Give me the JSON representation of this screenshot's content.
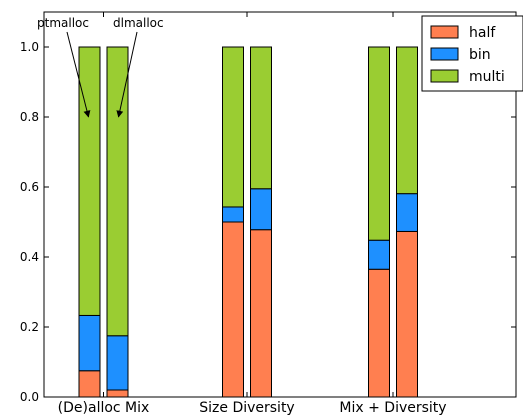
{
  "chart_data": {
    "type": "bar",
    "stacked": true,
    "categories": [
      "(De)alloc Mix",
      "Size Diversity",
      "Mix + Diversity"
    ],
    "bars_per_category": [
      "ptmalloc",
      "dlmalloc"
    ],
    "series": [
      {
        "name": "half",
        "color": "#ff7f50",
        "values": [
          [
            0.075,
            0.02
          ],
          [
            0.5,
            0.478
          ],
          [
            0.365,
            0.473
          ]
        ]
      },
      {
        "name": "bin",
        "color": "#1e90ff",
        "values": [
          [
            0.158,
            0.155
          ],
          [
            0.043,
            0.117
          ],
          [
            0.083,
            0.108
          ]
        ]
      },
      {
        "name": "multi",
        "color": "#9acd32",
        "values": [
          [
            0.767,
            0.825
          ],
          [
            0.457,
            0.405
          ],
          [
            0.552,
            0.419
          ]
        ]
      }
    ],
    "annotations": [
      {
        "text": "ptmalloc",
        "category_index": 0,
        "bar_index": 0,
        "arrow_to_y": 0.8
      },
      {
        "text": "dlmalloc",
        "category_index": 0,
        "bar_index": 1,
        "arrow_to_y": 0.8
      }
    ],
    "y_ticks": [
      "0.0",
      "0.2",
      "0.4",
      "0.6",
      "0.8",
      "1.0"
    ],
    "ylim": [
      0,
      1.1
    ],
    "title": "",
    "xlabel": "",
    "ylabel": "",
    "legend_position": "top-right",
    "grid": false
  }
}
